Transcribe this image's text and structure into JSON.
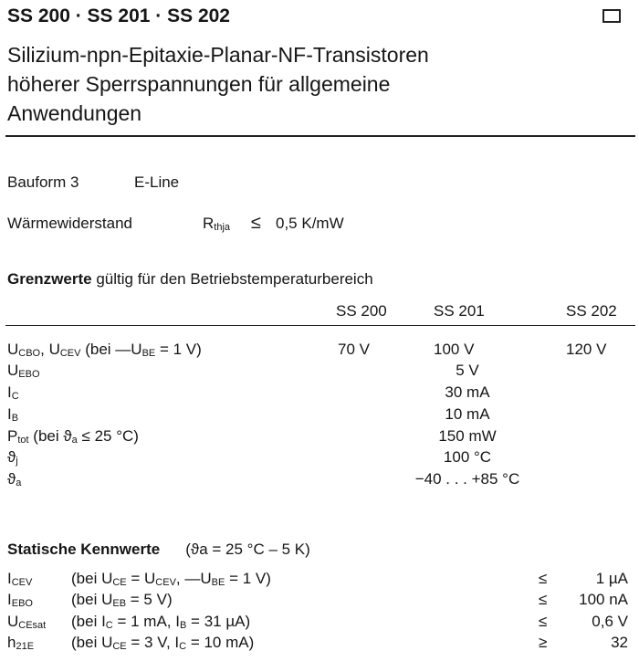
{
  "header": {
    "title": "SS 200 · SS 201 · SS 202",
    "subtitle": [
      "Silizium-npn-Epitaxie-Planar-NF-Transistoren",
      "höherer Sperrspannungen für allgemeine",
      "Anwendungen"
    ]
  },
  "bauform": {
    "label": "Bauform 3",
    "value": "E-Line"
  },
  "waerme": {
    "label": "Wärmewiderstand",
    "symbol": "R",
    "symbol_sub": "thja",
    "relation": "≤",
    "value": "0,5 K/mW"
  },
  "grenzwerte": {
    "title": "Grenzwerte",
    "subtitle": "gültig für den Betriebstemperaturbereich",
    "columns": [
      "SS 200",
      "SS 201",
      "SS 202"
    ],
    "rows": [
      {
        "label": [
          {
            "t": "U"
          },
          {
            "t": "CBO",
            "sub": true
          },
          {
            "t": ", U"
          },
          {
            "t": "CEV",
            "sub": true
          },
          {
            "t": " (bei —U"
          },
          {
            "t": "BE",
            "sub": true
          },
          {
            "t": " = 1 V)"
          }
        ],
        "values": [
          "70 V",
          "100 V",
          "120 V"
        ]
      },
      {
        "label": [
          {
            "t": "U"
          },
          {
            "t": "EBO",
            "sub": true
          }
        ],
        "value": "5 V"
      },
      {
        "label": [
          {
            "t": "I"
          },
          {
            "t": "C",
            "sub": true
          }
        ],
        "value": "30 mA"
      },
      {
        "label": [
          {
            "t": "I"
          },
          {
            "t": "B",
            "sub": true
          }
        ],
        "value": "10 mA"
      },
      {
        "label": [
          {
            "t": "P"
          },
          {
            "t": "tot",
            "sub": true
          },
          {
            "t": " (bei ϑ"
          },
          {
            "t": "a",
            "sub": true
          },
          {
            "t": " ≤ 25 °C)"
          }
        ],
        "value": "150 mW"
      },
      {
        "label": [
          {
            "t": "ϑ"
          },
          {
            "t": "j",
            "sub": true
          }
        ],
        "value": "100 °C"
      },
      {
        "label": [
          {
            "t": "ϑ"
          },
          {
            "t": "a",
            "sub": true
          }
        ],
        "value": "−40 . . . +85 °C"
      }
    ]
  },
  "statische": {
    "title": "Statische Kennwerte",
    "condition": "(ϑa = 25 °C – 5 K)",
    "rows": [
      {
        "symbol": [
          {
            "t": "I"
          },
          {
            "t": "CEV",
            "sub": true
          }
        ],
        "cond": [
          {
            "t": "(bei U"
          },
          {
            "t": "CE",
            "sub": true
          },
          {
            "t": " = U"
          },
          {
            "t": "CEV",
            "sub": true
          },
          {
            "t": ", —U"
          },
          {
            "t": "BE",
            "sub": true
          },
          {
            "t": " = 1 V)"
          }
        ],
        "rel": "≤",
        "value": "1 µA"
      },
      {
        "symbol": [
          {
            "t": "I"
          },
          {
            "t": "EBO",
            "sub": true
          }
        ],
        "cond": [
          {
            "t": "(bei U"
          },
          {
            "t": "EB",
            "sub": true
          },
          {
            "t": " = 5 V)"
          }
        ],
        "rel": "≤",
        "value": "100 nA"
      },
      {
        "symbol": [
          {
            "t": "U"
          },
          {
            "t": "CEsat",
            "sub": true
          }
        ],
        "cond": [
          {
            "t": "(bei I"
          },
          {
            "t": "C",
            "sub": true
          },
          {
            "t": " = 1 mA, I"
          },
          {
            "t": "B",
            "sub": true
          },
          {
            "t": " = 31 µA)"
          }
        ],
        "rel": "≤",
        "value": "0,6 V"
      },
      {
        "symbol": [
          {
            "t": "h"
          },
          {
            "t": "21E",
            "sub": true
          }
        ],
        "cond": [
          {
            "t": "(bei U"
          },
          {
            "t": "CE",
            "sub": true
          },
          {
            "t": " = 3 V, I"
          },
          {
            "t": "C",
            "sub": true
          },
          {
            "t": " = 10 mA)"
          }
        ],
        "rel": "≥",
        "value": "32"
      }
    ]
  }
}
